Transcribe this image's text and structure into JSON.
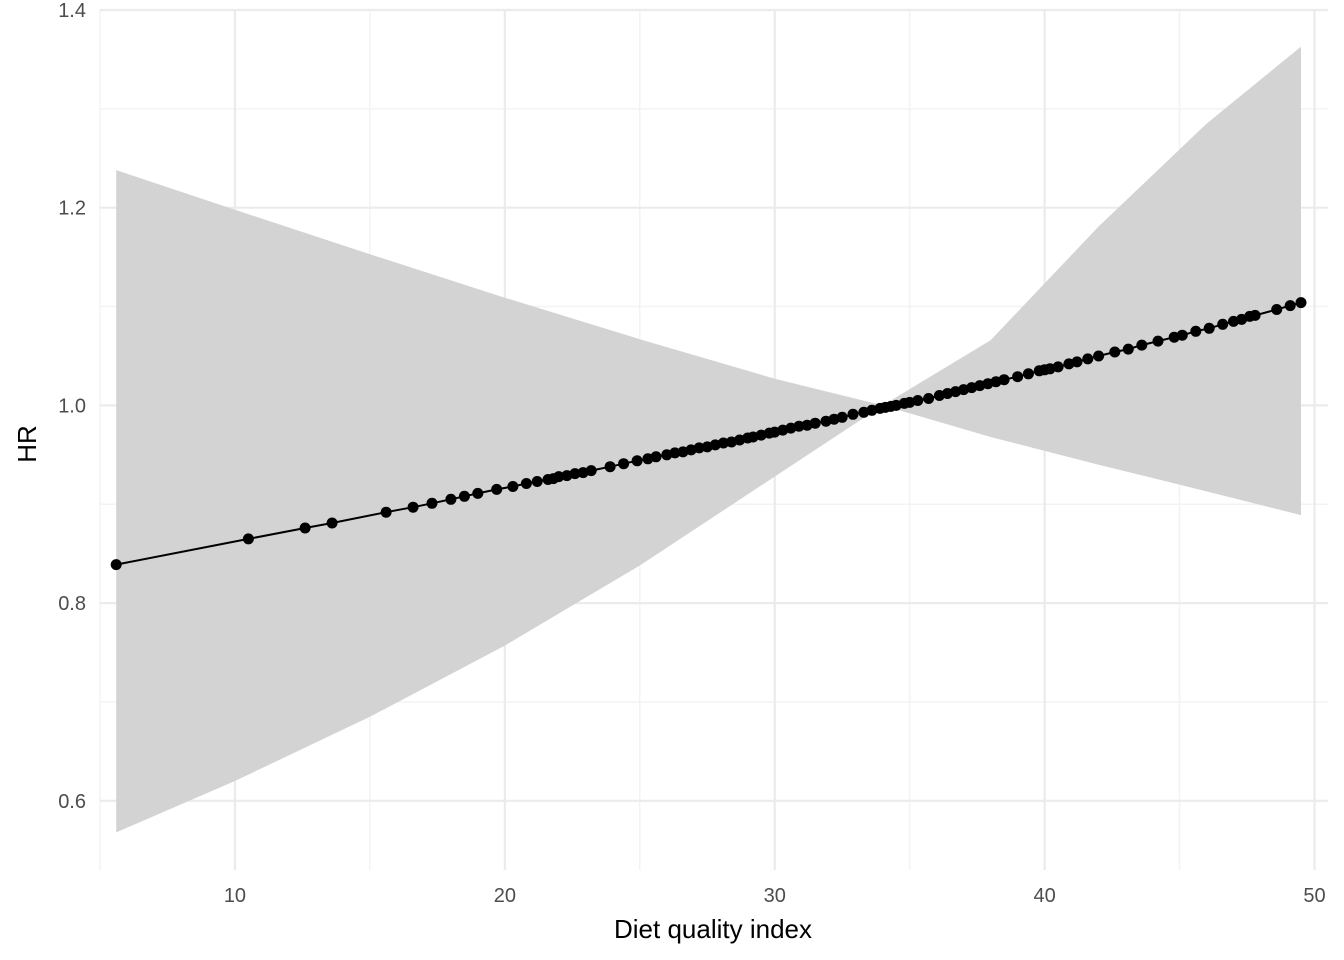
{
  "chart_data": {
    "type": "line",
    "title": "",
    "xlabel": "Diet quality index",
    "ylabel": "HR",
    "xlim": [
      5.0,
      50.5
    ],
    "ylim": [
      0.53,
      1.4
    ],
    "x_ticks": [
      10,
      20,
      30,
      40,
      50
    ],
    "y_ticks": [
      0.6,
      0.8,
      1.0,
      1.2,
      1.4
    ],
    "x_tick_labels": [
      "10",
      "20",
      "30",
      "40",
      "50"
    ],
    "y_tick_labels": [
      "0.6",
      "0.8",
      "1.0",
      "1.2",
      "1.4"
    ],
    "grid": true,
    "colors": {
      "line": "#000000",
      "points": "#000000",
      "ribbon": "#d3d3d3",
      "grid_major": "#ebebeb",
      "grid_minor": "#f3f3f3"
    },
    "series": [
      {
        "x": [
          5.6,
          10.5,
          12.6,
          13.6,
          15.6,
          16.6,
          17.3,
          18.0,
          18.5,
          19.0,
          19.7,
          20.3,
          20.8,
          21.2,
          21.6,
          21.8,
          22.0,
          22.3,
          22.6,
          22.9,
          23.2,
          23.9,
          24.4,
          24.9,
          25.3,
          25.6,
          26.0,
          26.3,
          26.6,
          26.9,
          27.2,
          27.5,
          27.8,
          28.1,
          28.4,
          28.7,
          29.0,
          29.2,
          29.5,
          29.8,
          30.0,
          30.3,
          30.6,
          30.9,
          31.2,
          31.5,
          31.9,
          32.2,
          32.5,
          32.9,
          33.3,
          33.6,
          33.9,
          34.1,
          34.3,
          34.5,
          34.8,
          35.0,
          35.3,
          35.7,
          36.1,
          36.4,
          36.7,
          37.0,
          37.3,
          37.6,
          37.9,
          38.2,
          38.5,
          39.0,
          39.4,
          39.8,
          40.0,
          40.2,
          40.5,
          40.9,
          41.2,
          41.6,
          42.0,
          42.6,
          43.1,
          43.6,
          44.2,
          44.8,
          45.1,
          45.6,
          46.1,
          46.6,
          47.0,
          47.3,
          47.6,
          47.8,
          48.6,
          49.1,
          49.5
        ],
        "values": [
          0.839,
          0.865,
          0.876,
          0.881,
          0.892,
          0.897,
          0.901,
          0.905,
          0.908,
          0.911,
          0.915,
          0.918,
          0.921,
          0.923,
          0.925,
          0.926,
          0.928,
          0.929,
          0.931,
          0.932,
          0.934,
          0.938,
          0.941,
          0.944,
          0.946,
          0.948,
          0.95,
          0.952,
          0.953,
          0.955,
          0.957,
          0.958,
          0.96,
          0.962,
          0.963,
          0.965,
          0.967,
          0.968,
          0.97,
          0.972,
          0.973,
          0.975,
          0.977,
          0.979,
          0.98,
          0.982,
          0.984,
          0.986,
          0.988,
          0.991,
          0.993,
          0.995,
          0.997,
          0.998,
          0.999,
          1.0,
          1.002,
          1.003,
          1.005,
          1.007,
          1.01,
          1.012,
          1.014,
          1.016,
          1.018,
          1.02,
          1.022,
          1.024,
          1.026,
          1.029,
          1.032,
          1.035,
          1.036,
          1.037,
          1.039,
          1.042,
          1.044,
          1.047,
          1.05,
          1.054,
          1.057,
          1.061,
          1.065,
          1.069,
          1.071,
          1.075,
          1.078,
          1.082,
          1.085,
          1.087,
          1.09,
          1.091,
          1.097,
          1.101,
          1.104
        ],
        "ci": {
          "x": [
            5.6,
            10,
            15,
            20,
            25,
            30,
            34,
            38,
            42,
            46,
            49.5
          ],
          "lower": [
            0.568,
            0.62,
            0.685,
            0.757,
            0.838,
            0.928,
            1.0,
            0.968,
            0.94,
            0.913,
            0.889
          ],
          "upper": [
            1.238,
            1.198,
            1.153,
            1.109,
            1.067,
            1.027,
            1.0,
            1.066,
            1.181,
            1.285,
            1.363
          ]
        }
      }
    ]
  }
}
